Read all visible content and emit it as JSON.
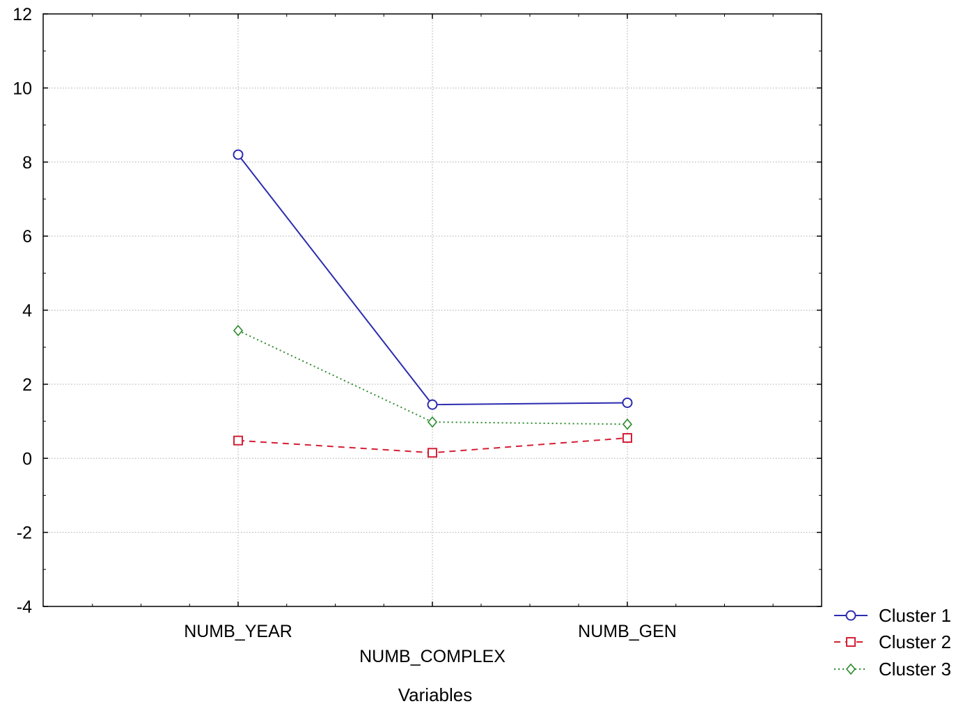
{
  "chart_data": {
    "type": "line",
    "xlabel": "Variables",
    "ylabel": "",
    "categories": [
      "NUMB_YEAR",
      "NUMB_COMPLEX",
      "NUMB_GEN"
    ],
    "ylim": [
      -4,
      12
    ],
    "yticks": [
      12,
      10,
      8,
      6,
      4,
      2,
      0,
      -2,
      -4
    ],
    "grid": true,
    "legend_position": "bottom-right",
    "series": [
      {
        "name": "Cluster 1",
        "values": [
          8.2,
          1.45,
          1.5
        ],
        "color": "#2b2bb0",
        "dash": "solid",
        "marker": "circle"
      },
      {
        "name": "Cluster 2",
        "values": [
          0.48,
          0.15,
          0.55
        ],
        "color": "#d42035",
        "dash": "dashed",
        "marker": "square"
      },
      {
        "name": "Cluster 3",
        "values": [
          3.45,
          0.98,
          0.92
        ],
        "color": "#2a8a2a",
        "dash": "dotted",
        "marker": "diamond"
      }
    ]
  }
}
